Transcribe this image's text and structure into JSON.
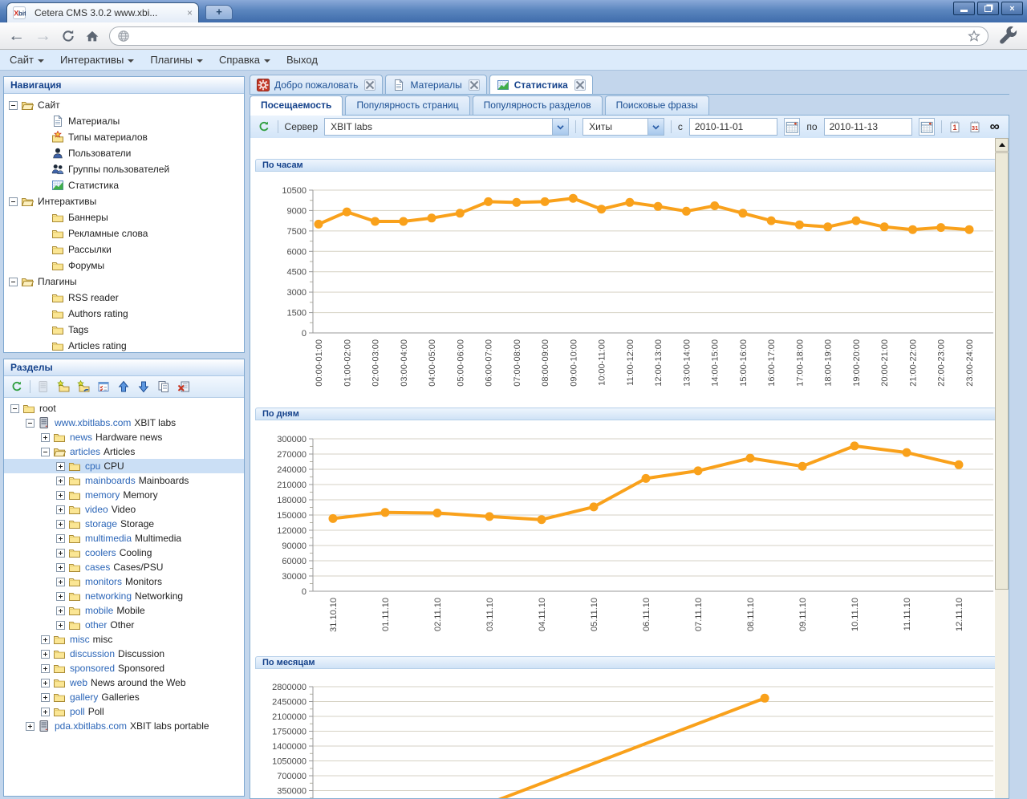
{
  "browser": {
    "tab_title": "Cetera CMS 3.0.2 www.xbi...",
    "favicon_text": "Xbit",
    "window_buttons": [
      "minimize-icon",
      "restore-icon",
      "close-icon"
    ],
    "address_bar": {
      "value": ""
    }
  },
  "menubar": {
    "items": [
      {
        "label": "Сайт",
        "arrow": true
      },
      {
        "label": "Интерактивы",
        "arrow": true
      },
      {
        "label": "Плагины",
        "arrow": true
      },
      {
        "label": "Справка",
        "arrow": true
      },
      {
        "label": "Выход",
        "arrow": false
      }
    ]
  },
  "navigation_panel": {
    "title": "Навигация",
    "tree": [
      {
        "level": 0,
        "expander": "minus",
        "icon": "folder-open",
        "label": "Сайт"
      },
      {
        "level": 1,
        "expander": "none",
        "icon": "doc",
        "label": "Материалы"
      },
      {
        "level": 1,
        "expander": "none",
        "icon": "types",
        "label": "Типы материалов"
      },
      {
        "level": 1,
        "expander": "none",
        "icon": "user",
        "label": "Пользователи"
      },
      {
        "level": 1,
        "expander": "none",
        "icon": "users",
        "label": "Группы пользователей"
      },
      {
        "level": 1,
        "expander": "none",
        "icon": "stats",
        "label": "Статистика"
      },
      {
        "level": 0,
        "expander": "minus",
        "icon": "folder-open",
        "label": "Интерактивы"
      },
      {
        "level": 1,
        "expander": "none",
        "icon": "folder",
        "label": "Баннеры"
      },
      {
        "level": 1,
        "expander": "none",
        "icon": "folder",
        "label": "Рекламные слова"
      },
      {
        "level": 1,
        "expander": "none",
        "icon": "folder",
        "label": "Рассылки"
      },
      {
        "level": 1,
        "expander": "none",
        "icon": "folder",
        "label": "Форумы"
      },
      {
        "level": 0,
        "expander": "minus",
        "icon": "folder-open",
        "label": "Плагины"
      },
      {
        "level": 1,
        "expander": "none",
        "icon": "folder",
        "label": "RSS reader"
      },
      {
        "level": 1,
        "expander": "none",
        "icon": "folder",
        "label": "Authors rating"
      },
      {
        "level": 1,
        "expander": "none",
        "icon": "folder",
        "label": "Tags"
      },
      {
        "level": 1,
        "expander": "none",
        "icon": "folder",
        "label": "Articles rating"
      }
    ]
  },
  "sections_panel": {
    "title": "Разделы",
    "toolbar_icons": [
      "refresh-icon",
      "server-disabled-icon",
      "add-section-icon",
      "add-section-link-icon",
      "properties-icon",
      "move-up-icon",
      "move-down-icon",
      "copy-icon",
      "delete-icon"
    ],
    "tree": [
      {
        "level": 0,
        "expander": "minus",
        "icon": "folder",
        "code": "",
        "name": "root",
        "selected": false
      },
      {
        "level": 1,
        "expander": "minus",
        "icon": "server",
        "code": "www.xbitlabs.com",
        "name": "XBIT labs",
        "selected": false
      },
      {
        "level": 2,
        "expander": "plus",
        "icon": "folder",
        "code": "news",
        "name": "Hardware news",
        "selected": false
      },
      {
        "level": 2,
        "expander": "minus",
        "icon": "folder-open",
        "code": "articles",
        "name": "Articles",
        "selected": false
      },
      {
        "level": 3,
        "expander": "plus",
        "icon": "folder",
        "code": "cpu",
        "name": "CPU",
        "selected": true
      },
      {
        "level": 3,
        "expander": "plus",
        "icon": "folder",
        "code": "mainboards",
        "name": "Mainboards",
        "selected": false
      },
      {
        "level": 3,
        "expander": "plus",
        "icon": "folder",
        "code": "memory",
        "name": "Memory",
        "selected": false
      },
      {
        "level": 3,
        "expander": "plus",
        "icon": "folder",
        "code": "video",
        "name": "Video",
        "selected": false
      },
      {
        "level": 3,
        "expander": "plus",
        "icon": "folder",
        "code": "storage",
        "name": "Storage",
        "selected": false
      },
      {
        "level": 3,
        "expander": "plus",
        "icon": "folder",
        "code": "multimedia",
        "name": "Multimedia",
        "selected": false
      },
      {
        "level": 3,
        "expander": "plus",
        "icon": "folder",
        "code": "coolers",
        "name": "Cooling",
        "selected": false
      },
      {
        "level": 3,
        "expander": "plus",
        "icon": "folder",
        "code": "cases",
        "name": "Cases/PSU",
        "selected": false
      },
      {
        "level": 3,
        "expander": "plus",
        "icon": "folder",
        "code": "monitors",
        "name": "Monitors",
        "selected": false
      },
      {
        "level": 3,
        "expander": "plus",
        "icon": "folder",
        "code": "networking",
        "name": "Networking",
        "selected": false
      },
      {
        "level": 3,
        "expander": "plus",
        "icon": "folder",
        "code": "mobile",
        "name": "Mobile",
        "selected": false
      },
      {
        "level": 3,
        "expander": "plus",
        "icon": "folder",
        "code": "other",
        "name": "Other",
        "selected": false
      },
      {
        "level": 2,
        "expander": "plus",
        "icon": "folder",
        "code": "misc",
        "name": "misc",
        "selected": false
      },
      {
        "level": 2,
        "expander": "plus",
        "icon": "folder",
        "code": "discussion",
        "name": "Discussion",
        "selected": false
      },
      {
        "level": 2,
        "expander": "plus",
        "icon": "folder",
        "code": "sponsored",
        "name": "Sponsored",
        "selected": false
      },
      {
        "level": 2,
        "expander": "plus",
        "icon": "folder",
        "code": "web",
        "name": "News around the Web",
        "selected": false
      },
      {
        "level": 2,
        "expander": "plus",
        "icon": "folder",
        "code": "gallery",
        "name": "Galleries",
        "selected": false
      },
      {
        "level": 2,
        "expander": "plus",
        "icon": "folder",
        "code": "poll",
        "name": "Poll",
        "selected": false
      },
      {
        "level": 1,
        "expander": "plus",
        "icon": "server",
        "code": "pda.xbitlabs.com",
        "name": "XBIT labs portable",
        "selected": false
      }
    ]
  },
  "main": {
    "tabs": [
      {
        "label": "Добро пожаловать",
        "icon": "welcome",
        "active": false
      },
      {
        "label": "Материалы",
        "icon": "doc",
        "active": false
      },
      {
        "label": "Статистика",
        "icon": "stats",
        "active": true
      }
    ],
    "subtabs": [
      {
        "label": "Посещаемость",
        "active": true
      },
      {
        "label": "Популярность страниц",
        "active": false
      },
      {
        "label": "Популярность разделов",
        "active": false
      },
      {
        "label": "Поисковые фразы",
        "active": false
      }
    ],
    "toolbar": {
      "server_label": "Сервер",
      "server_value": "XBIT labs",
      "metric_value": "Хиты",
      "from_label": "с",
      "from_date": "2010-11-01",
      "to_label": "по",
      "to_date": "2010-11-13",
      "icons": [
        "refresh-icon",
        "calendar-picker-icon",
        "calendar-picker-icon",
        "day-view-icon",
        "month-view-icon",
        "all-time-infinity-icon"
      ]
    }
  },
  "colors": {
    "line": "#F9A11B",
    "grid": "#d6d2c4",
    "axis": "#9a9a9a",
    "header_text": "#15428B"
  },
  "chart_data": [
    {
      "type": "line",
      "title": "По часам",
      "categories": [
        "00:00-01:00",
        "01:00-02:00",
        "02:00-03:00",
        "03:00-04:00",
        "04:00-05:00",
        "05:00-06:00",
        "06:00-07:00",
        "07:00-08:00",
        "08:00-09:00",
        "09:00-10:00",
        "10:00-11:00",
        "11:00-12:00",
        "12:00-13:00",
        "13:00-14:00",
        "14:00-15:00",
        "15:00-16:00",
        "16:00-17:00",
        "17:00-18:00",
        "18:00-19:00",
        "19:00-20:00",
        "20:00-21:00",
        "21:00-22:00",
        "22:00-23:00",
        "23:00-24:00"
      ],
      "values": [
        8000,
        8900,
        8200,
        8200,
        8450,
        8800,
        9650,
        9600,
        9650,
        9900,
        9100,
        9600,
        9300,
        8950,
        9350,
        8800,
        8250,
        7950,
        7800,
        8250,
        7800,
        7600,
        7750,
        7600
      ],
      "ylim": [
        0,
        10500
      ],
      "ystep": 1500,
      "grid": true,
      "legend": false
    },
    {
      "type": "line",
      "title": "По дням",
      "categories": [
        "31.10.10",
        "01.11.10",
        "02.11.10",
        "03.11.10",
        "04.11.10",
        "05.11.10",
        "06.11.10",
        "07.11.10",
        "08.11.10",
        "09.11.10",
        "10.11.10",
        "11.11.10",
        "12.11.10"
      ],
      "values": [
        143000,
        155000,
        154000,
        147000,
        141000,
        166000,
        222000,
        237000,
        262000,
        246000,
        286000,
        273000,
        249000
      ],
      "ylim": [
        0,
        300000
      ],
      "ystep": 30000,
      "grid": true,
      "legend": false
    },
    {
      "type": "line",
      "title": "По месяцам",
      "ylim": [
        0,
        2800000
      ],
      "ystep": 350000,
      "grid": true,
      "legend": false,
      "clipped_bottom": true,
      "points": [
        {
          "fx": 0.251,
          "value": 0
        },
        {
          "fx": 0.664,
          "value": 2530000
        }
      ]
    }
  ]
}
